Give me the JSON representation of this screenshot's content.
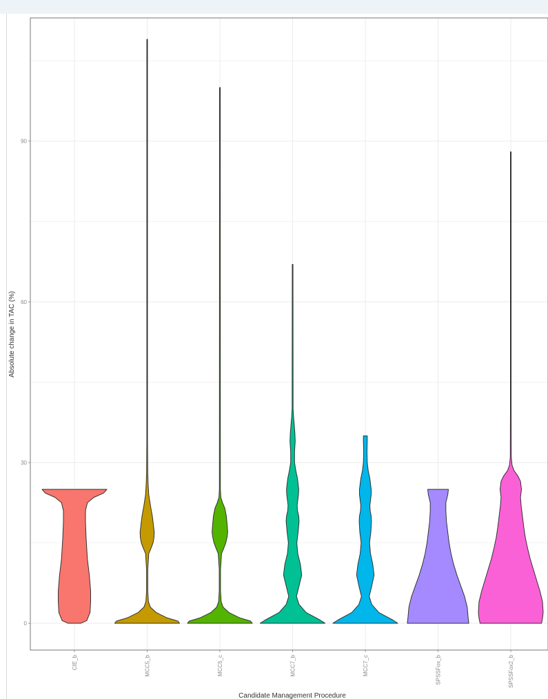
{
  "chart_data": {
    "type": "violin",
    "xlabel": "Candidate Management Procedure",
    "ylabel": "Absolute change in TAC (%)",
    "ylim": [
      -5,
      113
    ],
    "yticks": [
      0,
      30,
      60,
      90
    ],
    "grid": true,
    "legend": "none",
    "categories": [
      "CIE_b",
      "MCC5_b",
      "MCC5_c",
      "MCC7_b",
      "MCC7_c",
      "SPSSFox_b",
      "SPSSFox2_b"
    ],
    "colors": [
      "#f8766d",
      "#c49a00",
      "#53b400",
      "#00c094",
      "#00b6eb",
      "#a58aff",
      "#fb61d7"
    ],
    "violins": [
      {
        "min": 0,
        "max": 25,
        "profile": [
          [
            0,
            0.2
          ],
          [
            0.5,
            0.38
          ],
          [
            2,
            0.48
          ],
          [
            4,
            0.5
          ],
          [
            6,
            0.5
          ],
          [
            9,
            0.46
          ],
          [
            12,
            0.4
          ],
          [
            16,
            0.36
          ],
          [
            19,
            0.34
          ],
          [
            21,
            0.34
          ],
          [
            22.5,
            0.4
          ],
          [
            23.5,
            0.6
          ],
          [
            24.3,
            0.9
          ],
          [
            25,
            1.0
          ]
        ]
      },
      {
        "min": 0,
        "max": 109,
        "profile": [
          [
            0,
            1.0
          ],
          [
            0.4,
            0.95
          ],
          [
            1,
            0.62
          ],
          [
            2,
            0.28
          ],
          [
            3,
            0.1
          ],
          [
            4,
            0.04
          ],
          [
            6,
            0.02
          ],
          [
            10,
            0.02
          ],
          [
            13,
            0.05
          ],
          [
            14,
            0.12
          ],
          [
            15,
            0.18
          ],
          [
            16,
            0.21
          ],
          [
            17,
            0.22
          ],
          [
            18,
            0.2
          ],
          [
            20,
            0.16
          ],
          [
            22,
            0.1
          ],
          [
            24,
            0.05
          ],
          [
            26,
            0.03
          ],
          [
            28,
            0.02
          ],
          [
            34,
            0.01
          ],
          [
            40,
            0.01
          ],
          [
            109,
            0.01
          ]
        ]
      },
      {
        "min": 0,
        "max": 100,
        "profile": [
          [
            0,
            1.0
          ],
          [
            0.4,
            0.95
          ],
          [
            1,
            0.62
          ],
          [
            2,
            0.28
          ],
          [
            3,
            0.1
          ],
          [
            4,
            0.04
          ],
          [
            6,
            0.02
          ],
          [
            10,
            0.02
          ],
          [
            13,
            0.05
          ],
          [
            14,
            0.12
          ],
          [
            15,
            0.18
          ],
          [
            16,
            0.22
          ],
          [
            17,
            0.24
          ],
          [
            18,
            0.23
          ],
          [
            20,
            0.2
          ],
          [
            21.5,
            0.15
          ],
          [
            22.5,
            0.08
          ],
          [
            23.5,
            0.03
          ],
          [
            25,
            0.015
          ],
          [
            100,
            0.01
          ]
        ]
      },
      {
        "min": 0,
        "max": 67,
        "profile": [
          [
            0,
            1.0
          ],
          [
            0.6,
            0.85
          ],
          [
            2,
            0.42
          ],
          [
            3.5,
            0.2
          ],
          [
            5,
            0.12
          ],
          [
            7,
            0.2
          ],
          [
            9,
            0.28
          ],
          [
            11,
            0.24
          ],
          [
            13,
            0.16
          ],
          [
            15,
            0.13
          ],
          [
            17,
            0.17
          ],
          [
            19,
            0.2
          ],
          [
            20,
            0.19
          ],
          [
            21,
            0.15
          ],
          [
            22,
            0.14
          ],
          [
            24,
            0.18
          ],
          [
            25,
            0.19
          ],
          [
            27,
            0.15
          ],
          [
            28.5,
            0.1
          ],
          [
            30,
            0.06
          ],
          [
            32,
            0.06
          ],
          [
            34,
            0.08
          ],
          [
            35.5,
            0.07
          ],
          [
            37,
            0.05
          ],
          [
            38.5,
            0.03
          ],
          [
            40,
            0.015
          ],
          [
            67,
            0.01
          ]
        ]
      },
      {
        "min": 0,
        "max": 35,
        "profile": [
          [
            0,
            1.0
          ],
          [
            0.6,
            0.85
          ],
          [
            2,
            0.42
          ],
          [
            3.5,
            0.2
          ],
          [
            5,
            0.12
          ],
          [
            7,
            0.2
          ],
          [
            9,
            0.27
          ],
          [
            11,
            0.23
          ],
          [
            13,
            0.16
          ],
          [
            15,
            0.13
          ],
          [
            17,
            0.17
          ],
          [
            19,
            0.19
          ],
          [
            20,
            0.18
          ],
          [
            21,
            0.15
          ],
          [
            22,
            0.14
          ],
          [
            24,
            0.18
          ],
          [
            25,
            0.18
          ],
          [
            27,
            0.14
          ],
          [
            28.5,
            0.09
          ],
          [
            30,
            0.06
          ],
          [
            32,
            0.05
          ],
          [
            34,
            0.06
          ],
          [
            35,
            0.06
          ]
        ]
      },
      {
        "min": 0,
        "max": 25,
        "profile": [
          [
            0,
            0.95
          ],
          [
            1,
            0.93
          ],
          [
            3,
            0.9
          ],
          [
            5,
            0.82
          ],
          [
            7,
            0.7
          ],
          [
            9,
            0.58
          ],
          [
            11,
            0.48
          ],
          [
            13,
            0.4
          ],
          [
            15,
            0.34
          ],
          [
            17,
            0.3
          ],
          [
            19,
            0.26
          ],
          [
            21,
            0.24
          ],
          [
            22.5,
            0.24
          ],
          [
            24,
            0.3
          ],
          [
            25,
            0.32
          ]
        ]
      },
      {
        "min": 0,
        "max": 88,
        "profile": [
          [
            0,
            0.95
          ],
          [
            1,
            0.98
          ],
          [
            2,
            1.0
          ],
          [
            4,
            0.98
          ],
          [
            6,
            0.9
          ],
          [
            8,
            0.8
          ],
          [
            10,
            0.7
          ],
          [
            12,
            0.6
          ],
          [
            14,
            0.52
          ],
          [
            16,
            0.45
          ],
          [
            18,
            0.4
          ],
          [
            20,
            0.36
          ],
          [
            22,
            0.32
          ],
          [
            23.5,
            0.3
          ],
          [
            25,
            0.33
          ],
          [
            26.5,
            0.3
          ],
          [
            27.5,
            0.22
          ],
          [
            28.5,
            0.1
          ],
          [
            29.5,
            0.04
          ],
          [
            31,
            0.015
          ],
          [
            40,
            0.01
          ],
          [
            88,
            0.01
          ]
        ]
      }
    ]
  }
}
